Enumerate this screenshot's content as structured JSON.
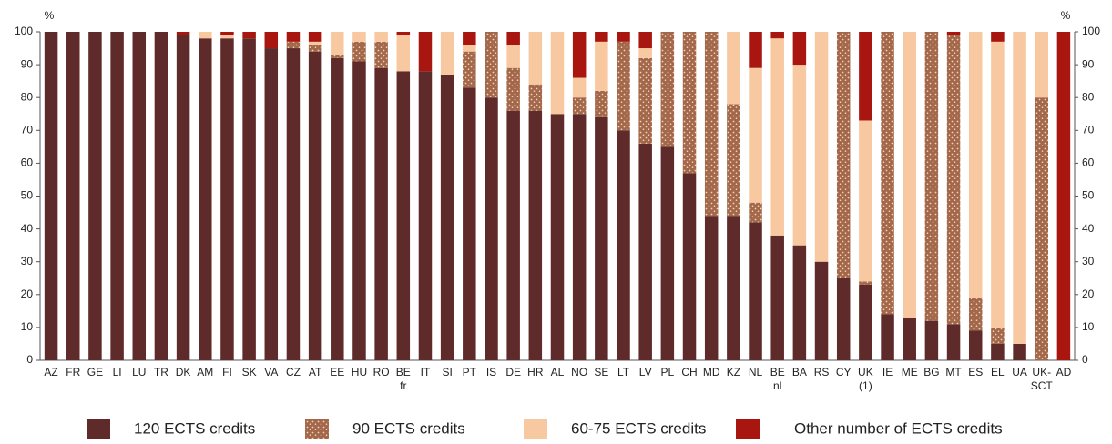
{
  "chart_data": {
    "type": "stacked_bar",
    "ylabel": "%",
    "y2label": "%",
    "categories": [
      "AZ",
      "FR",
      "GE",
      "LI",
      "LU",
      "TR",
      "DK",
      "AM",
      "FI",
      "SK",
      "VA",
      "CZ",
      "AT",
      "EE",
      "HU",
      "RO",
      "BE\nfr",
      "IT",
      "SI",
      "PT",
      "IS",
      "DE",
      "HR",
      "AL",
      "NO",
      "SE",
      "LT",
      "LV",
      "PL",
      "CH",
      "MD",
      "KZ",
      "NL",
      "BE\nnl",
      "BA",
      "RS",
      "CY",
      "UK\n(1)",
      "IE",
      "ME",
      "BG",
      "MT",
      "ES",
      "EL",
      "UA",
      "UK-\nSCT",
      "AD"
    ],
    "series": [
      {
        "name": "120 ECTS credits",
        "color": "#5e2b2a",
        "values": [
          100,
          100,
          100,
          100,
          100,
          100,
          99,
          98,
          98,
          98,
          95,
          95,
          94,
          92,
          91,
          89,
          88,
          88,
          87,
          83,
          80,
          76,
          76,
          75,
          75,
          74,
          70,
          66,
          65,
          57,
          44,
          44,
          42,
          38,
          35,
          30,
          25,
          23,
          14,
          13,
          12,
          11,
          9,
          5,
          5,
          0,
          0
        ]
      },
      {
        "name": "90 ECTS credits",
        "color": "#a3684c",
        "values": [
          0,
          0,
          0,
          0,
          0,
          0,
          0,
          0,
          0,
          0,
          0,
          2,
          2,
          1,
          6,
          8,
          0,
          0,
          0,
          11,
          20,
          13,
          8,
          0,
          5,
          8,
          27,
          26,
          35,
          43,
          56,
          34,
          6,
          0,
          0,
          0,
          75,
          1,
          86,
          0,
          88,
          88,
          10,
          5,
          0,
          80,
          0
        ]
      },
      {
        "name": "60-75 ECTS credits",
        "color": "#f8c9a0",
        "values": [
          0,
          0,
          0,
          0,
          0,
          0,
          0,
          2,
          1,
          0,
          0,
          0,
          1,
          7,
          3,
          3,
          11,
          0,
          13,
          2,
          0,
          7,
          16,
          25,
          6,
          15,
          0,
          3,
          0,
          0,
          0,
          22,
          41,
          60,
          55,
          70,
          0,
          49,
          0,
          87,
          0,
          0,
          81,
          87,
          95,
          20,
          0
        ]
      },
      {
        "name": "Other number of ECTS credits",
        "color": "#a8160f",
        "values": [
          0,
          0,
          0,
          0,
          0,
          0,
          1,
          0,
          1,
          2,
          5,
          3,
          3,
          0,
          0,
          0,
          1,
          12,
          0,
          4,
          0,
          4,
          0,
          0,
          14,
          3,
          3,
          5,
          0,
          0,
          0,
          0,
          11,
          2,
          10,
          0,
          0,
          27,
          0,
          0,
          0,
          1,
          0,
          3,
          0,
          0,
          100
        ]
      }
    ],
    "ylim": [
      0,
      100
    ],
    "yticks": [
      0,
      10,
      20,
      30,
      40,
      50,
      60,
      70,
      80,
      90,
      100
    ],
    "y2lim": [
      0,
      100
    ],
    "y2ticks": [
      0,
      10,
      20,
      30,
      40,
      50,
      60,
      70,
      80,
      90,
      100
    ]
  }
}
